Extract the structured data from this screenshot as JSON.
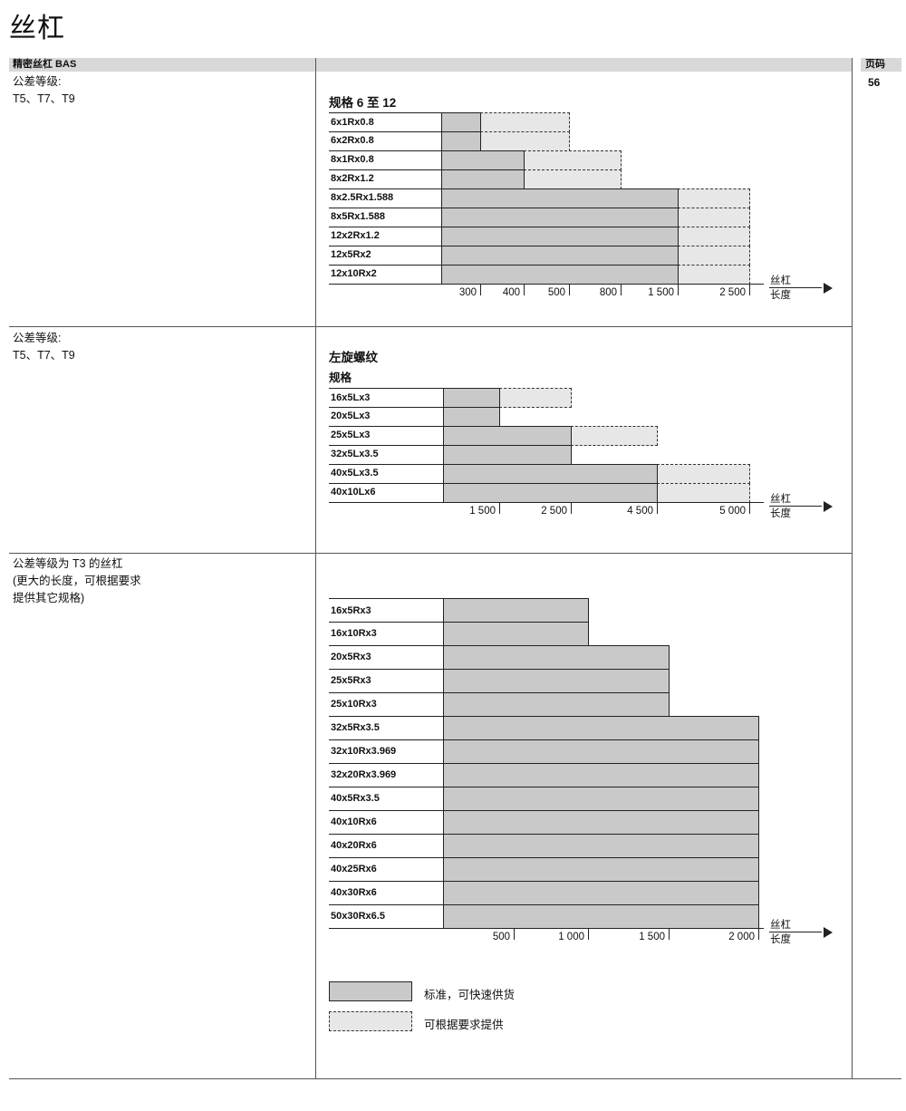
{
  "page": {
    "title": "丝杠",
    "header": {
      "left": "精密丝杠 BAS",
      "page_label": "页码",
      "page_number": "56"
    }
  },
  "sections": [
    {
      "left_lines": [
        "公差等级:",
        "T5、T7、T9"
      ]
    },
    {
      "left_lines": [
        "公差等级:",
        "T5、T7、T9"
      ]
    },
    {
      "left_lines": [
        "公差等级为 T3 的丝杠",
        "(更大的长度，可根据要求",
        "提供其它规格)"
      ]
    }
  ],
  "axis_label": {
    "top": "丝杠",
    "bottom": "长度"
  },
  "legend": [
    {
      "style": "solid-gray",
      "label": "标准，可快速供货"
    },
    {
      "style": "dashed-outline",
      "label": "可根据要求提供"
    }
  ],
  "chart_data": [
    {
      "type": "bar",
      "title": "规格 6 至 12",
      "orientation": "horizontal-availability",
      "xlabel": "丝杠长度",
      "ticks": [
        "300",
        "400",
        "500",
        "800",
        "1 500",
        "2 500"
      ],
      "tick_values": [
        300,
        400,
        500,
        800,
        1500,
        2500
      ],
      "rows": [
        {
          "label": "6x1Rx0.8",
          "standard_to": 300,
          "on_request_to": 500
        },
        {
          "label": "6x2Rx0.8",
          "standard_to": 300,
          "on_request_to": 500
        },
        {
          "label": "8x1Rx0.8",
          "standard_to": 400,
          "on_request_to": 800
        },
        {
          "label": "8x2Rx1.2",
          "standard_to": 400,
          "on_request_to": 800
        },
        {
          "label": "8x2.5Rx1.588",
          "standard_to": 1500,
          "on_request_to": 2500
        },
        {
          "label": "8x5Rx1.588",
          "standard_to": 1500,
          "on_request_to": 2500
        },
        {
          "label": "12x2Rx1.2",
          "standard_to": 1500,
          "on_request_to": 2500
        },
        {
          "label": "12x5Rx2",
          "standard_to": 1500,
          "on_request_to": 2500
        },
        {
          "label": "12x10Rx2",
          "standard_to": 1500,
          "on_request_to": 2500
        }
      ]
    },
    {
      "type": "bar",
      "title": "左旋螺纹",
      "subtitle": "规格",
      "orientation": "horizontal-availability",
      "xlabel": "丝杠长度",
      "ticks": [
        "1 500",
        "2 500",
        "4 500",
        "5 000"
      ],
      "tick_values": [
        1500,
        2500,
        4500,
        5000
      ],
      "rows": [
        {
          "label": "16x5Lx3",
          "standard_to": 1500,
          "on_request_to": 2500
        },
        {
          "label": "20x5Lx3",
          "standard_to": 1500,
          "on_request_to": null
        },
        {
          "label": "25x5Lx3",
          "standard_to": 2500,
          "on_request_to": 4500
        },
        {
          "label": "32x5Lx3.5",
          "standard_to": 2500,
          "on_request_to": null
        },
        {
          "label": "40x5Lx3.5",
          "standard_to": 4500,
          "on_request_to": 5000
        },
        {
          "label": "40x10Lx6",
          "standard_to": 4500,
          "on_request_to": 5000
        }
      ]
    },
    {
      "type": "bar",
      "title": "",
      "orientation": "horizontal-availability",
      "xlabel": "丝杠长度",
      "ticks": [
        "500",
        "1 000",
        "1 500",
        "2 000"
      ],
      "tick_values": [
        500,
        1000,
        1500,
        2000
      ],
      "rows": [
        {
          "label": "16x5Rx3",
          "standard_to": 1000,
          "on_request_to": null
        },
        {
          "label": "16x10Rx3",
          "standard_to": 1000,
          "on_request_to": null
        },
        {
          "label": "20x5Rx3",
          "standard_to": 1500,
          "on_request_to": null
        },
        {
          "label": "25x5Rx3",
          "standard_to": 1500,
          "on_request_to": null
        },
        {
          "label": "25x10Rx3",
          "standard_to": 1500,
          "on_request_to": null
        },
        {
          "label": "32x5Rx3.5",
          "standard_to": 2000,
          "on_request_to": null
        },
        {
          "label": "32x10Rx3.969",
          "standard_to": 2000,
          "on_request_to": null
        },
        {
          "label": "32x20Rx3.969",
          "standard_to": 2000,
          "on_request_to": null
        },
        {
          "label": "40x5Rx3.5",
          "standard_to": 2000,
          "on_request_to": null
        },
        {
          "label": "40x10Rx6",
          "standard_to": 2000,
          "on_request_to": null
        },
        {
          "label": "40x20Rx6",
          "standard_to": 2000,
          "on_request_to": null
        },
        {
          "label": "40x25Rx6",
          "standard_to": 2000,
          "on_request_to": null
        },
        {
          "label": "40x30Rx6",
          "standard_to": 2000,
          "on_request_to": null
        },
        {
          "label": "50x30Rx6.5",
          "standard_to": 2000,
          "on_request_to": null
        }
      ]
    }
  ],
  "colors": {
    "bar_standard": "#c9c9c9",
    "bar_on_request_fill": "#e7e7e7",
    "header_bar": "#d8d8d8"
  }
}
